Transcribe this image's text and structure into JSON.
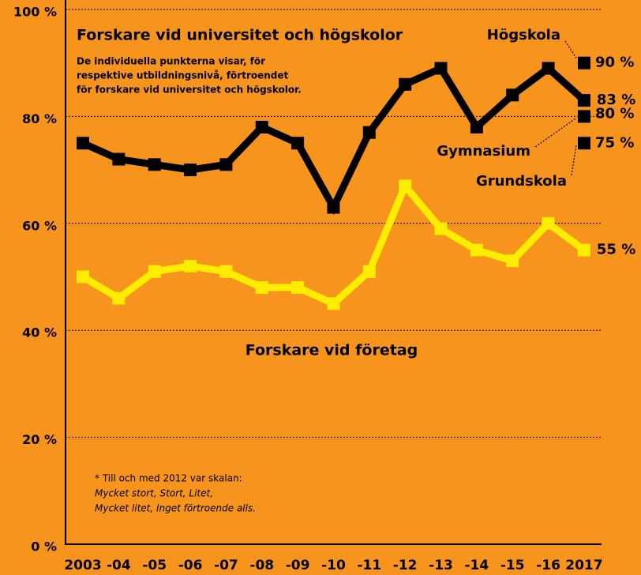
{
  "chart_data": {
    "type": "line",
    "categories": [
      "2003",
      "-04",
      "-05",
      "-06",
      "-07",
      "-08",
      "-09",
      "-10",
      "-11",
      "-12",
      "-13",
      "-14",
      "-15",
      "-16",
      "2017"
    ],
    "series": [
      {
        "name": "Forskare vid universitet och högskolor",
        "color": "#000000",
        "values": [
          75,
          72,
          71,
          70,
          71,
          78,
          75,
          63,
          77,
          86,
          89,
          78,
          84,
          89,
          83
        ],
        "value_labels": [
          null,
          null,
          null,
          null,
          null,
          null,
          null,
          null,
          null,
          null,
          null,
          null,
          null,
          null,
          "83 %"
        ]
      },
      {
        "name": "Forskare vid företag",
        "color": "#ffed00",
        "values": [
          50,
          46,
          51,
          52,
          51,
          48,
          48,
          45,
          51,
          67,
          59,
          55,
          53,
          60,
          55
        ],
        "value_labels": [
          null,
          null,
          null,
          null,
          null,
          null,
          null,
          null,
          null,
          null,
          null,
          null,
          null,
          null,
          "55 %"
        ]
      }
    ],
    "subtitle_lines": [
      "De individuella punkterna visar, för",
      "respektive utbildningsnivå, förtroendet",
      "för forskare vid universitet och högskolor."
    ],
    "individual_points": [
      {
        "name": "Högskola",
        "value": 90,
        "value_label": "90 %"
      },
      {
        "name": "Gymnasium",
        "value": 80,
        "value_label": "80 %"
      },
      {
        "name": "Grundskola",
        "value": 75,
        "value_label": "75 %"
      }
    ],
    "footnote_lines": [
      "* Till och med 2012 var skalan:",
      "Mycket stort, Stort, Litet,",
      "Mycket litet, Inget förtroende alls."
    ],
    "ylim": [
      0,
      100
    ],
    "yticks": [
      {
        "value": 0,
        "label": "0 %"
      },
      {
        "value": 20,
        "label": "20 %"
      },
      {
        "value": 40,
        "label": "40 %"
      },
      {
        "value": 60,
        "label": "60 %"
      },
      {
        "value": 80,
        "label": "80 %"
      },
      {
        "value": 100,
        "label": "100 %"
      }
    ],
    "grid": true,
    "background": "#f7941d"
  }
}
